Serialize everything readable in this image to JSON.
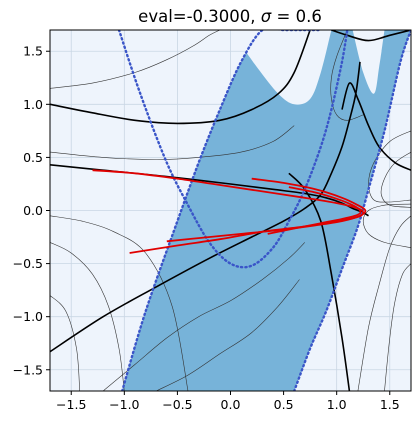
{
  "chart_data": {
    "type": "line",
    "title": "eval=-0.3000, σ=0.6",
    "title_parts": {
      "pre": "eval=-0.3000, ",
      "sym": "σ",
      "post": " = 0.6"
    },
    "xlabel": "",
    "ylabel": "",
    "xlim": [
      -1.7,
      1.7
    ],
    "ylim": [
      -1.7,
      1.7
    ],
    "xticks": [
      -1.5,
      -1.0,
      -0.5,
      0.0,
      0.5,
      1.0,
      1.5
    ],
    "yticks": [
      -1.5,
      -1.0,
      -0.5,
      0.0,
      0.5,
      1.0,
      1.5
    ],
    "xtick_labels": [
      "−1.5",
      "−1.0",
      "−0.5",
      "0.0",
      "0.5",
      "1.0",
      "1.5"
    ],
    "ytick_labels": [
      "−1.5",
      "−1.0",
      "−0.5",
      "0.0",
      "0.5",
      "1.0",
      "1.5"
    ],
    "grid": true,
    "colors": {
      "background": "#eef4fc",
      "band": "#77b3d9",
      "dotted": "#3a55c8",
      "trajectory": "#e00000",
      "separatrix": "#000000",
      "flow": "#333333",
      "grid": "#c9d6e4"
    },
    "series": [
      {
        "role": "band-edge-left",
        "style": "dotted",
        "x": [
          -1.02,
          -0.8,
          -0.5,
          -0.3,
          -0.1,
          0.1,
          0.3,
          0.5,
          0.7,
          0.85
        ],
        "y": [
          -1.7,
          -0.95,
          -0.1,
          0.45,
          0.95,
          1.4,
          1.7,
          1.7,
          1.7,
          1.7
        ]
      },
      {
        "role": "band-centre",
        "style": "dotted",
        "x": [
          -1.05,
          -0.85,
          -0.6,
          -0.4,
          -0.2,
          0.0,
          0.2,
          0.4,
          0.55,
          0.7,
          0.85,
          0.95,
          1.05,
          1.1
        ],
        "y": [
          1.7,
          1.1,
          0.45,
          0.05,
          -0.3,
          -0.5,
          -0.52,
          -0.35,
          -0.1,
          0.2,
          0.6,
          0.95,
          1.4,
          1.7
        ]
      },
      {
        "role": "band-edge-right",
        "style": "dotted",
        "x": [
          0.6,
          0.75,
          0.9,
          1.05,
          1.2,
          1.3,
          1.45,
          1.6,
          1.7
        ],
        "y": [
          -1.7,
          -1.3,
          -0.95,
          -0.55,
          -0.15,
          0.2,
          0.75,
          1.4,
          1.7
        ]
      },
      {
        "role": "trajectory",
        "style": "solid",
        "x": [
          -1.3,
          -0.9,
          -0.5,
          -0.1,
          0.3,
          0.7,
          1.0,
          1.2,
          1.25,
          1.2,
          1.0,
          0.7,
          0.3,
          -0.1,
          -0.5,
          -0.95
        ],
        "y": [
          0.38,
          0.35,
          0.3,
          0.24,
          0.18,
          0.12,
          0.07,
          0.02,
          -0.02,
          -0.06,
          -0.1,
          -0.15,
          -0.2,
          -0.27,
          -0.33,
          -0.4
        ]
      },
      {
        "role": "trajectory",
        "style": "solid",
        "x": [
          0.2,
          0.5,
          0.8,
          1.05,
          1.2,
          1.27,
          1.22,
          1.05,
          0.8,
          0.5,
          0.1,
          -0.3,
          -0.6
        ],
        "y": [
          0.3,
          0.26,
          0.2,
          0.12,
          0.05,
          0.0,
          -0.05,
          -0.1,
          -0.14,
          -0.18,
          -0.22,
          -0.26,
          -0.29
        ]
      },
      {
        "role": "trajectory",
        "style": "solid",
        "x": [
          0.55,
          0.8,
          1.0,
          1.15,
          1.22,
          1.2,
          1.05,
          0.85,
          0.6,
          0.35
        ],
        "y": [
          0.22,
          0.17,
          0.11,
          0.05,
          0.0,
          -0.04,
          -0.08,
          -0.12,
          -0.17,
          -0.22
        ]
      },
      {
        "role": "separatrix",
        "style": "solid",
        "x": [
          -1.7,
          -1.2,
          -0.6,
          0.0,
          0.4,
          0.7,
          0.9,
          1.05,
          1.15,
          1.25,
          1.3
        ],
        "y": [
          0.43,
          0.38,
          0.32,
          0.25,
          0.2,
          0.16,
          0.12,
          0.07,
          0.02,
          -0.02,
          -0.05
        ]
      },
      {
        "role": "separatrix",
        "style": "solid",
        "x": [
          -1.7,
          -1.2,
          -0.7,
          -0.2,
          0.2,
          0.5,
          0.7,
          0.85,
          0.95,
          1.05,
          1.12,
          1.18,
          1.22
        ],
        "y": [
          -1.33,
          -1.0,
          -0.72,
          -0.45,
          -0.25,
          -0.1,
          0.02,
          0.15,
          0.35,
          0.6,
          0.85,
          1.1,
          1.4
        ]
      },
      {
        "role": "separatrix",
        "style": "solid",
        "x": [
          0.55,
          0.7,
          0.85,
          0.95,
          1.05,
          1.12
        ],
        "y": [
          0.35,
          0.2,
          -0.1,
          -0.6,
          -1.2,
          -1.7
        ]
      },
      {
        "role": "separatrix",
        "style": "solid",
        "x": [
          -1.7,
          -1.3,
          -0.9,
          -0.5,
          -0.1,
          0.2,
          0.45,
          0.6,
          0.75
        ],
        "y": [
          1.0,
          0.92,
          0.85,
          0.82,
          0.85,
          0.95,
          1.1,
          1.3,
          1.7
        ]
      },
      {
        "role": "separatrix",
        "style": "solid",
        "x": [
          1.05,
          1.12,
          1.2,
          1.3,
          1.4,
          1.55,
          1.7
        ],
        "y": [
          0.95,
          1.2,
          1.05,
          0.8,
          0.6,
          0.45,
          0.38
        ]
      },
      {
        "role": "separatrix",
        "style": "solid",
        "x": [
          0.95,
          1.1,
          1.3,
          1.5,
          1.7
        ],
        "y": [
          1.7,
          1.65,
          1.6,
          1.65,
          1.7
        ]
      },
      {
        "role": "flow",
        "style": "solid",
        "x": [
          -1.7,
          -1.4,
          -1.1,
          -0.8,
          -0.55,
          -0.4
        ],
        "y": [
          -0.05,
          -0.1,
          -0.2,
          -0.4,
          -0.9,
          -1.7
        ]
      },
      {
        "role": "flow",
        "style": "solid",
        "x": [
          -1.7,
          -1.5,
          -1.3,
          -1.15,
          -1.05,
          -1.0
        ],
        "y": [
          -0.3,
          -0.4,
          -0.6,
          -0.9,
          -1.3,
          -1.7
        ]
      },
      {
        "role": "flow",
        "style": "solid",
        "x": [
          -1.7,
          -1.55,
          -1.45,
          -1.42
        ],
        "y": [
          -0.8,
          -0.95,
          -1.3,
          -1.7
        ]
      },
      {
        "role": "flow",
        "style": "solid",
        "x": [
          -1.7,
          -1.2,
          -0.7,
          -0.3,
          0.1,
          0.4,
          0.6
        ],
        "y": [
          0.55,
          0.5,
          0.48,
          0.5,
          0.55,
          0.65,
          0.8
        ]
      },
      {
        "role": "flow",
        "style": "solid",
        "x": [
          -1.7,
          -1.3,
          -0.9,
          -0.6,
          -0.35,
          -0.2,
          -0.1
        ],
        "y": [
          1.15,
          1.2,
          1.3,
          1.42,
          1.55,
          1.65,
          1.7
        ]
      },
      {
        "role": "flow",
        "style": "solid",
        "x": [
          -1.2,
          -0.9,
          -0.6,
          -0.3,
          0.0,
          0.3,
          0.55,
          0.7
        ],
        "y": [
          -1.7,
          -1.45,
          -1.2,
          -1.0,
          -0.85,
          -0.65,
          -0.45,
          -0.3
        ]
      },
      {
        "role": "flow",
        "style": "solid",
        "x": [
          -0.7,
          -0.4,
          -0.1,
          0.2,
          0.45,
          0.65
        ],
        "y": [
          -1.7,
          -1.55,
          -1.35,
          -1.15,
          -0.9,
          -0.65
        ]
      },
      {
        "role": "flow",
        "style": "solid",
        "x": [
          1.2,
          1.3,
          1.4,
          1.5,
          1.6,
          1.7
        ],
        "y": [
          -1.7,
          -1.1,
          -0.7,
          -0.35,
          -0.15,
          -0.05
        ]
      },
      {
        "role": "flow",
        "style": "solid",
        "x": [
          1.45,
          1.5,
          1.55,
          1.62,
          1.7
        ],
        "y": [
          -1.7,
          -1.2,
          -0.85,
          -0.6,
          -0.5
        ]
      },
      {
        "role": "flow",
        "style": "solid",
        "x": [
          1.7,
          1.5,
          1.35,
          1.3,
          1.35,
          1.5,
          1.7
        ],
        "y": [
          0.75,
          0.65,
          0.45,
          0.25,
          0.1,
          0.08,
          0.1
        ]
      },
      {
        "role": "flow",
        "style": "solid",
        "x": [
          1.7,
          1.55,
          1.45,
          1.42,
          1.5,
          1.7
        ],
        "y": [
          0.55,
          0.45,
          0.3,
          0.15,
          0.05,
          0.03
        ]
      },
      {
        "role": "flow",
        "style": "solid",
        "x": [
          1.1,
          1.0,
          0.95,
          0.95,
          1.0,
          1.1,
          1.25
        ],
        "y": [
          1.7,
          1.45,
          1.25,
          1.05,
          0.9,
          0.85,
          0.9
        ]
      },
      {
        "role": "flow",
        "style": "solid",
        "x": [
          1.7,
          1.45,
          1.3,
          1.25,
          1.3,
          1.45,
          1.7
        ],
        "y": [
          -0.35,
          -0.3,
          -0.22,
          -0.1,
          0.0,
          0.05,
          0.06
        ]
      }
    ],
    "band": {
      "upper_x": [
        -1.5,
        -1.1,
        -0.8,
        -0.5,
        -0.2,
        0.1,
        0.4,
        0.6
      ],
      "upper_y": [
        1.7,
        1.7,
        1.7,
        1.7,
        1.7,
        1.7,
        1.7,
        1.7
      ],
      "notes": "region between band-edge-left and band-edge-right"
    }
  }
}
